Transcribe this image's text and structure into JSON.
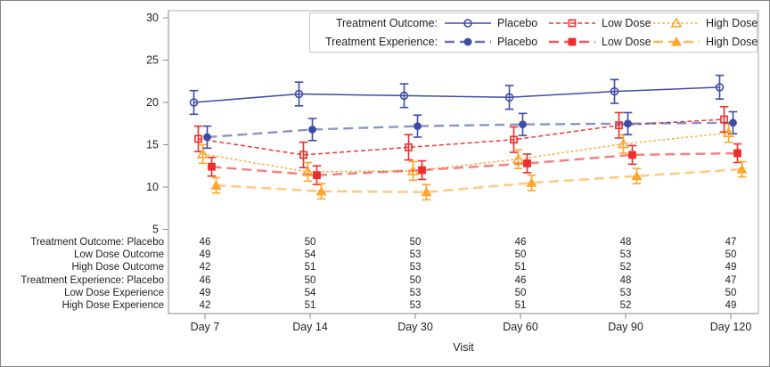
{
  "figure": {
    "background": "#ffffff",
    "border_color": "#858585"
  },
  "chart_data": {
    "type": "line",
    "title": "",
    "xlabel": "Visit",
    "ylabel": "",
    "x_categories": [
      "Day 7",
      "Day 14",
      "Day 30",
      "Day 60",
      "Day 90",
      "Day 120"
    ],
    "y_ticks": [
      5,
      10,
      15,
      20,
      25,
      30
    ],
    "ylim": [
      5,
      30
    ],
    "grid": false,
    "legend_position": "top-inside",
    "legend": {
      "rows": [
        {
          "label": "Treatment Outcome:",
          "series": [
            0,
            1,
            2
          ]
        },
        {
          "label": "Treatment Experience:",
          "series": [
            3,
            4,
            5
          ]
        }
      ]
    },
    "series": [
      {
        "id": "placebo-outcome",
        "name": "Placebo",
        "group": "Treatment Outcome",
        "color": "#3E4CA5",
        "line": "solid",
        "line_width": 1.5,
        "line_opacity": 1,
        "marker": "circle-open",
        "cluster_offset": -12.5,
        "error_halfwidth": 1.4,
        "values": [
          20.0,
          21.0,
          20.8,
          20.6,
          21.3,
          21.8
        ]
      },
      {
        "id": "low-dose-outcome",
        "name": "Low Dose",
        "group": "Treatment Outcome",
        "color": "#ED2E2E",
        "line": "dash",
        "line_width": 1.5,
        "line_opacity": 0.95,
        "marker": "square-open",
        "cluster_offset": -7.5,
        "error_halfwidth": 1.5,
        "values": [
          15.7,
          13.8,
          14.7,
          15.6,
          17.3,
          18.0
        ]
      },
      {
        "id": "high-dose-outcome",
        "name": "High Dose",
        "group": "Treatment Outcome",
        "color": "#FFA42C",
        "line": "dot",
        "line_width": 1.5,
        "line_opacity": 0.95,
        "marker": "triangle-open",
        "cluster_offset": -2.5,
        "error_halfwidth": 1.1,
        "values": [
          13.9,
          11.8,
          11.9,
          13.3,
          15.1,
          16.4
        ]
      },
      {
        "id": "placebo-experience",
        "name": "Placebo",
        "group": "Treatment Experience",
        "color": "#3E4CA5",
        "line": "longdash",
        "line_width": 2.4,
        "line_opacity": 0.6,
        "marker": "circle-filled",
        "cluster_offset": 2.5,
        "error_halfwidth": 1.3,
        "values": [
          15.9,
          16.8,
          17.2,
          17.4,
          17.5,
          17.6
        ]
      },
      {
        "id": "low-dose-experience",
        "name": "Low Dose",
        "group": "Treatment Experience",
        "color": "#ED2E2E",
        "line": "longdash",
        "line_width": 2.5,
        "line_opacity": 0.6,
        "marker": "square-filled",
        "cluster_offset": 7.5,
        "error_halfwidth": 1.1,
        "values": [
          12.4,
          11.4,
          12.0,
          12.8,
          13.8,
          14.0
        ]
      },
      {
        "id": "high-dose-experience",
        "name": "High Dose",
        "group": "Treatment Experience",
        "color": "#FFA42C",
        "line": "longdash",
        "line_width": 2.5,
        "line_opacity": 0.6,
        "marker": "triangle-filled",
        "cluster_offset": 12.5,
        "error_halfwidth": 0.9,
        "values": [
          10.2,
          9.5,
          9.4,
          10.5,
          11.3,
          12.1
        ]
      }
    ],
    "axis_table": {
      "rows": [
        {
          "label": "Treatment Outcome: Placebo",
          "values": [
            "46",
            "50",
            "50",
            "46",
            "48",
            "47"
          ]
        },
        {
          "label": "Low Dose Outcome",
          "values": [
            "49",
            "54",
            "53",
            "50",
            "53",
            "50"
          ]
        },
        {
          "label": "High Dose Outcome",
          "values": [
            "42",
            "51",
            "53",
            "51",
            "52",
            "49"
          ]
        },
        {
          "label": "Treatment Experience: Placebo",
          "values": [
            "46",
            "50",
            "50",
            "46",
            "48",
            "47"
          ]
        },
        {
          "label": "Low Dose Experience",
          "values": [
            "49",
            "54",
            "53",
            "50",
            "53",
            "50"
          ]
        },
        {
          "label": "High Dose Experience",
          "values": [
            "42",
            "51",
            "53",
            "51",
            "52",
            "49"
          ]
        }
      ]
    }
  }
}
